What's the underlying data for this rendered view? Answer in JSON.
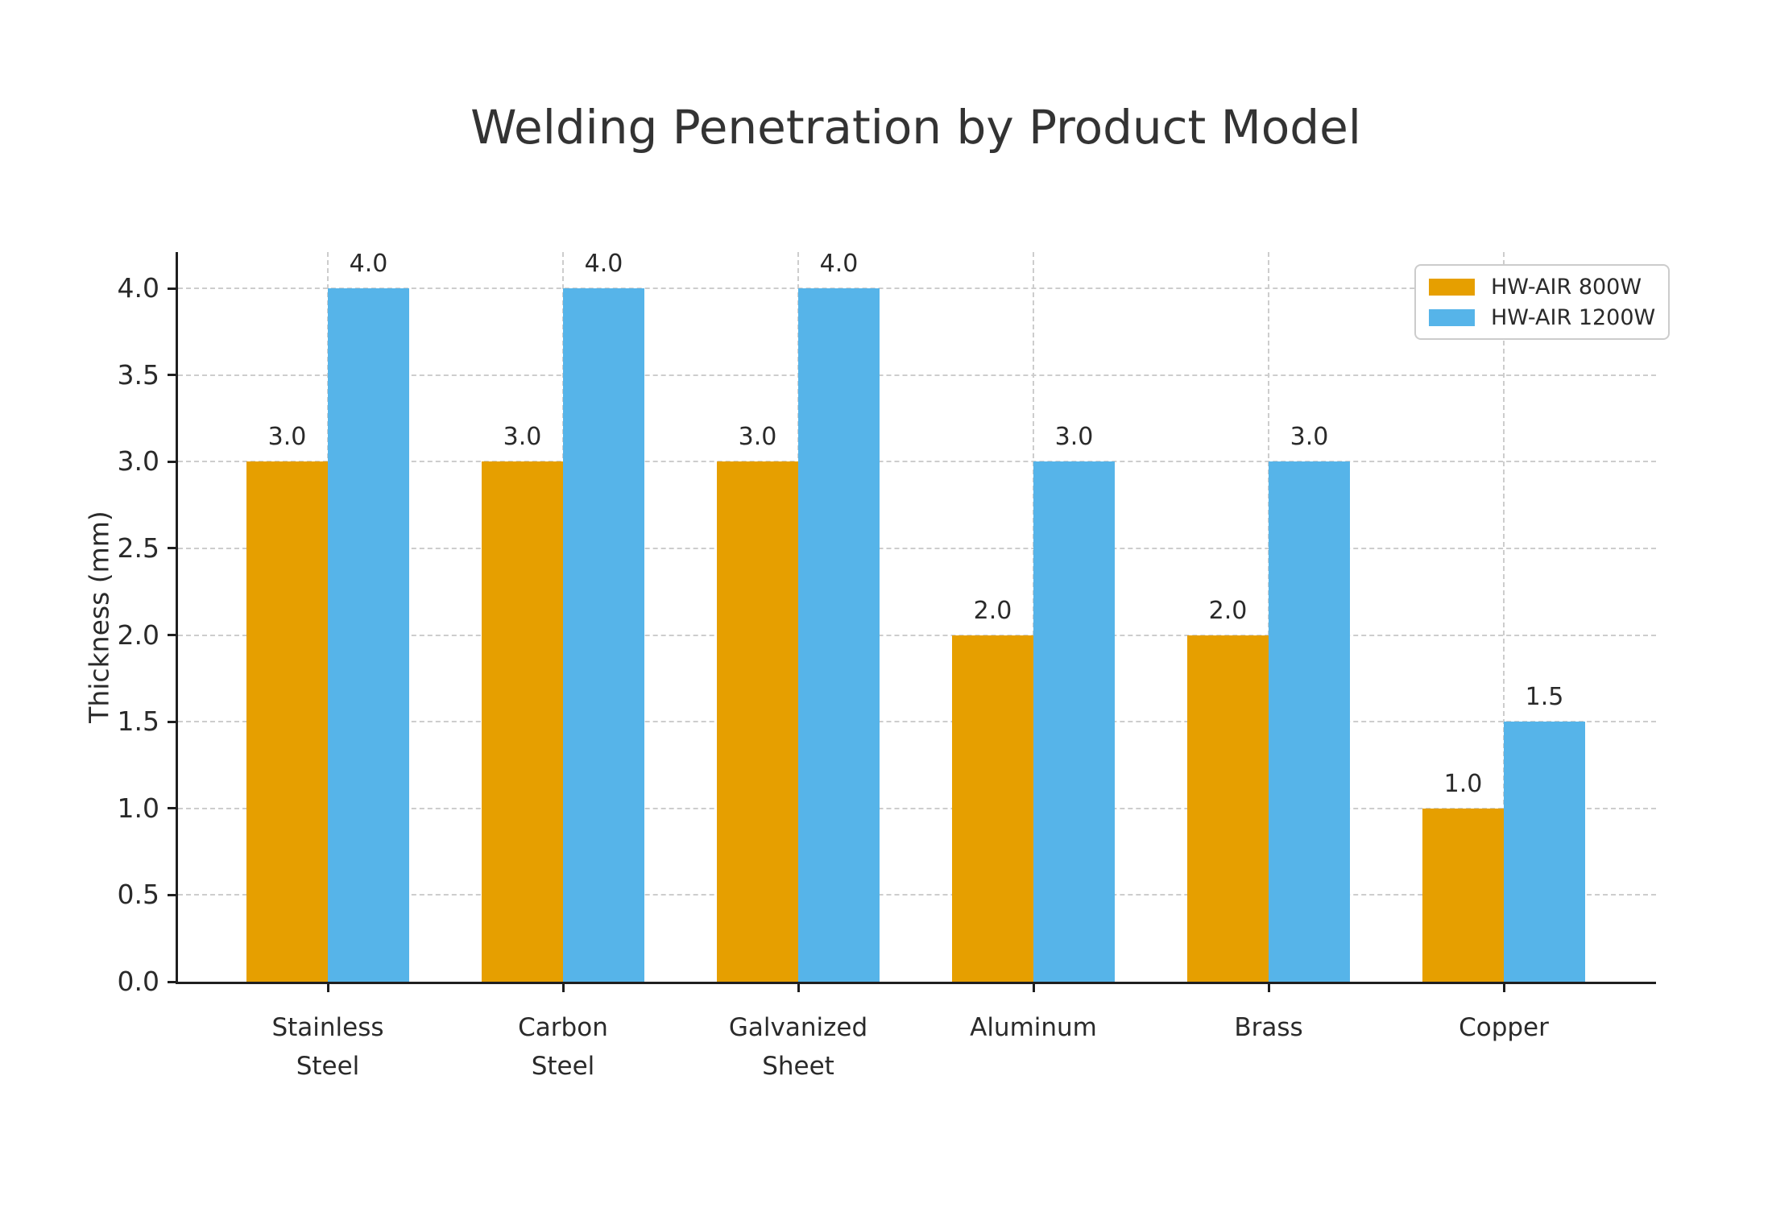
{
  "title": "Welding Penetration by Product Model",
  "colors": {
    "series_800w": "#E69F00",
    "series_1200w": "#56B4E9",
    "grid": "#CDCDCD",
    "axis": "#1F1F1F",
    "text": "#2A2A2A",
    "title_text": "#333333",
    "legend_border": "#CCCCCC",
    "background": "#FFFFFF"
  },
  "chart_data": {
    "type": "bar",
    "title": "Welding Penetration by Product Model",
    "xlabel": "",
    "ylabel": "Thickness (mm)",
    "categories": [
      "Stainless\nSteel",
      "Carbon\nSteel",
      "Galvanized\nSheet",
      "Aluminum",
      "Brass",
      "Copper"
    ],
    "series": [
      {
        "name": "HW-AIR 800W",
        "color": "#E69F00",
        "values": [
          3.0,
          3.0,
          3.0,
          2.0,
          2.0,
          1.0
        ]
      },
      {
        "name": "HW-AIR 1200W",
        "color": "#56B4E9",
        "values": [
          4.0,
          4.0,
          4.0,
          3.0,
          3.0,
          1.5
        ]
      }
    ],
    "ylim": [
      0,
      4.21
    ],
    "yticks": [
      0.0,
      0.5,
      1.0,
      1.5,
      2.0,
      2.5,
      3.0,
      3.5,
      4.0
    ],
    "grid": true,
    "grid_style": "dashed",
    "legend_position": "upper right",
    "bar_value_labels": true,
    "value_label_decimals": 1
  }
}
